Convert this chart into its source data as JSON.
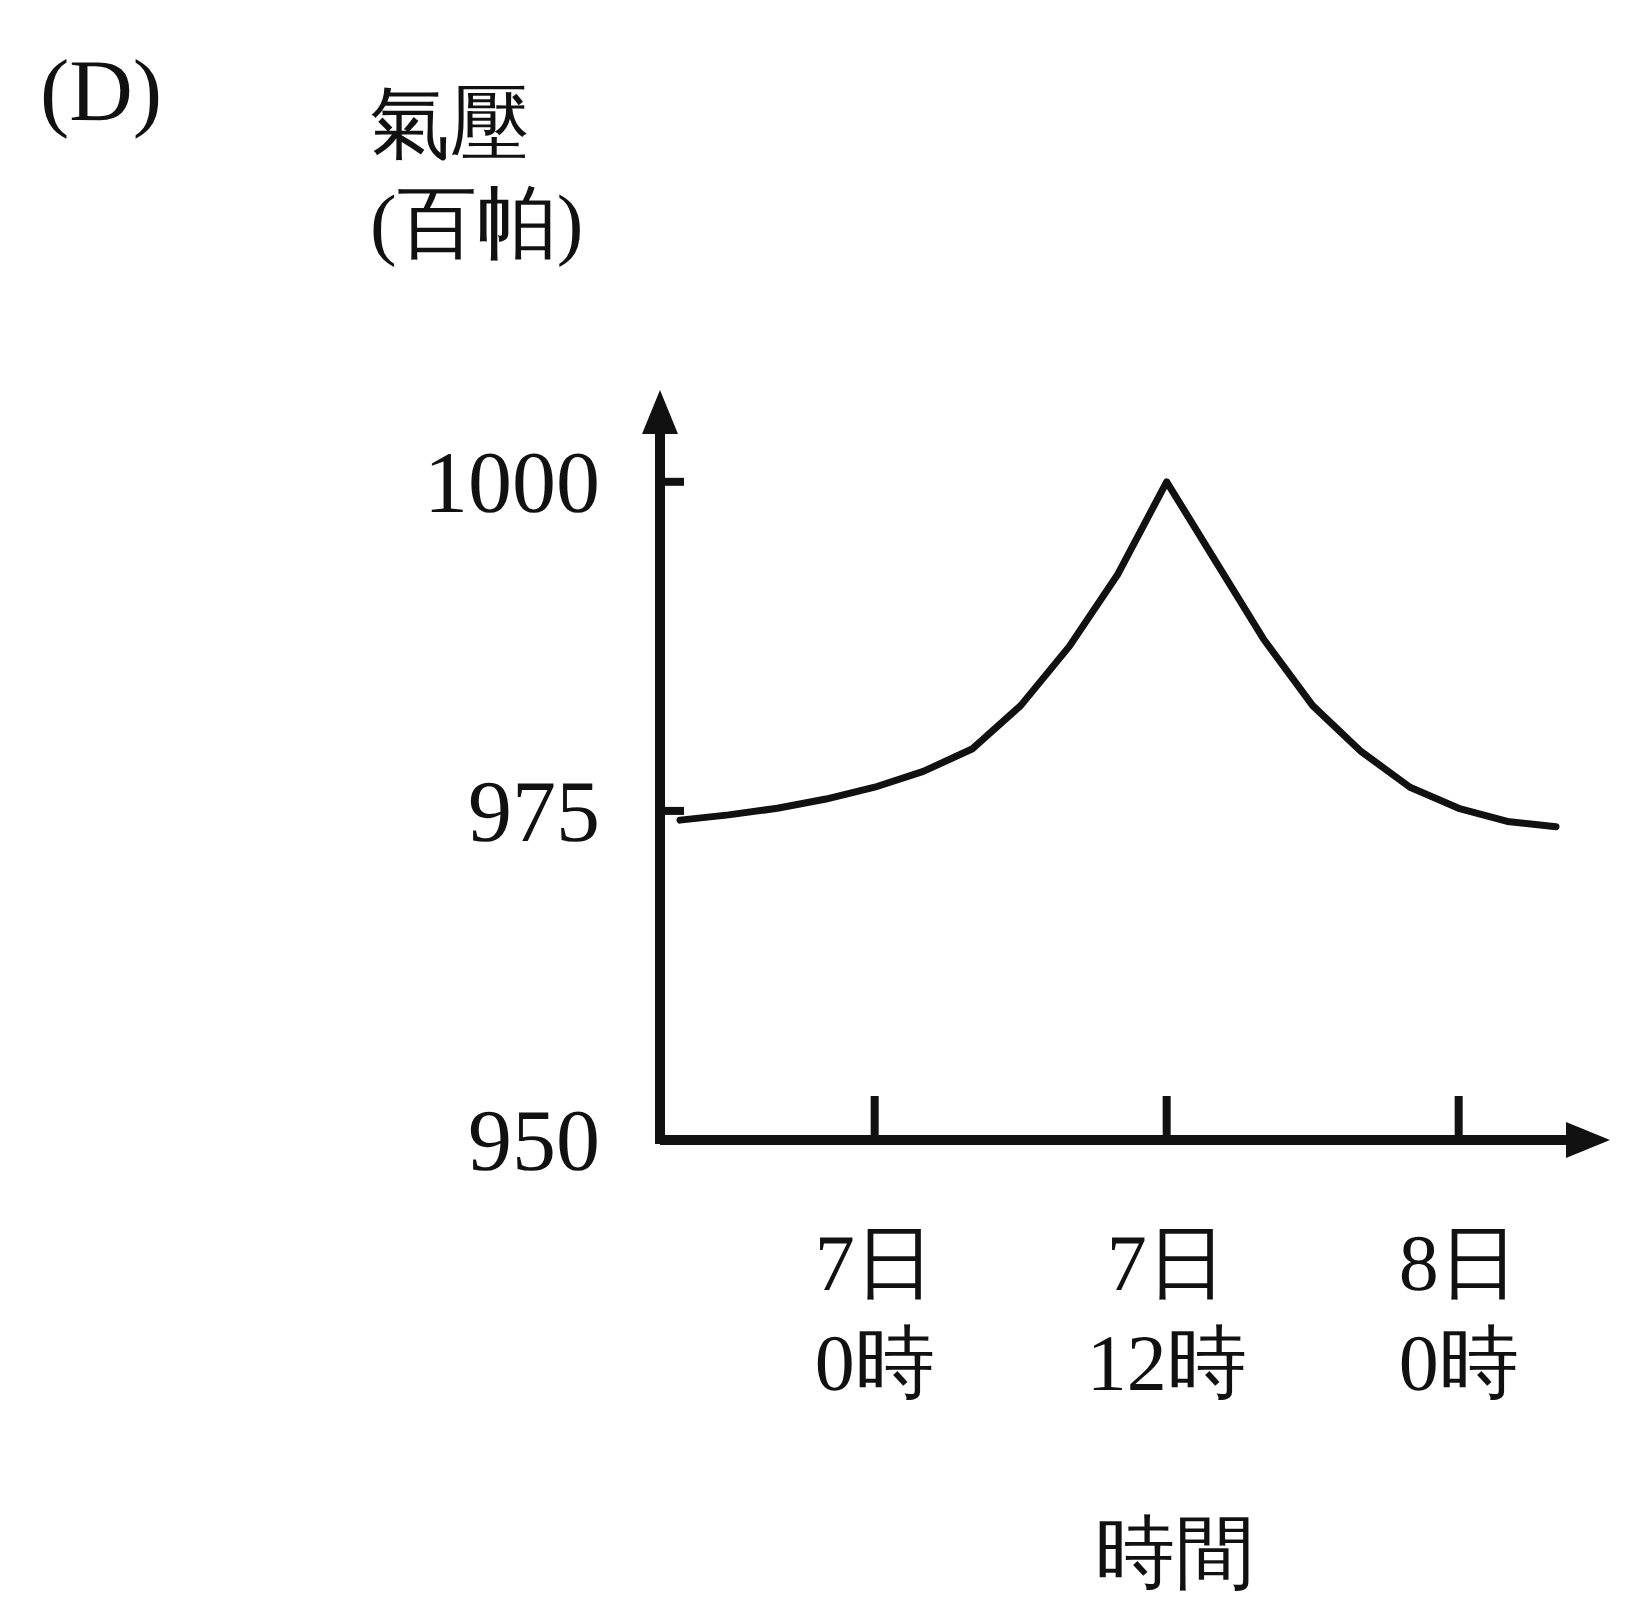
{
  "chart_data": {
    "type": "line",
    "xlabel": "時間",
    "ylabel": "氣壓\n(百帕)",
    "annotations": [
      "(D)"
    ],
    "categories": [
      null,
      null,
      null,
      null,
      "7日\n0時",
      null,
      null,
      null,
      null,
      null,
      "7日\n12時",
      null,
      null,
      null,
      null,
      null,
      "8日\n0時",
      null,
      null
    ],
    "series": [
      {
        "color": "#111111",
        "values": [
          974.3,
          974.7,
          975.2,
          975.9,
          976.8,
          978,
          979.7,
          983,
          987.5,
          993,
          1000,
          994,
          988,
          983,
          979.5,
          976.8,
          975.2,
          974.2,
          973.8
        ]
      }
    ],
    "ylim": [
      950,
      1005
    ],
    "yticks": [
      950,
      975,
      1000
    ],
    "line_style": "solid",
    "grid": false
  }
}
